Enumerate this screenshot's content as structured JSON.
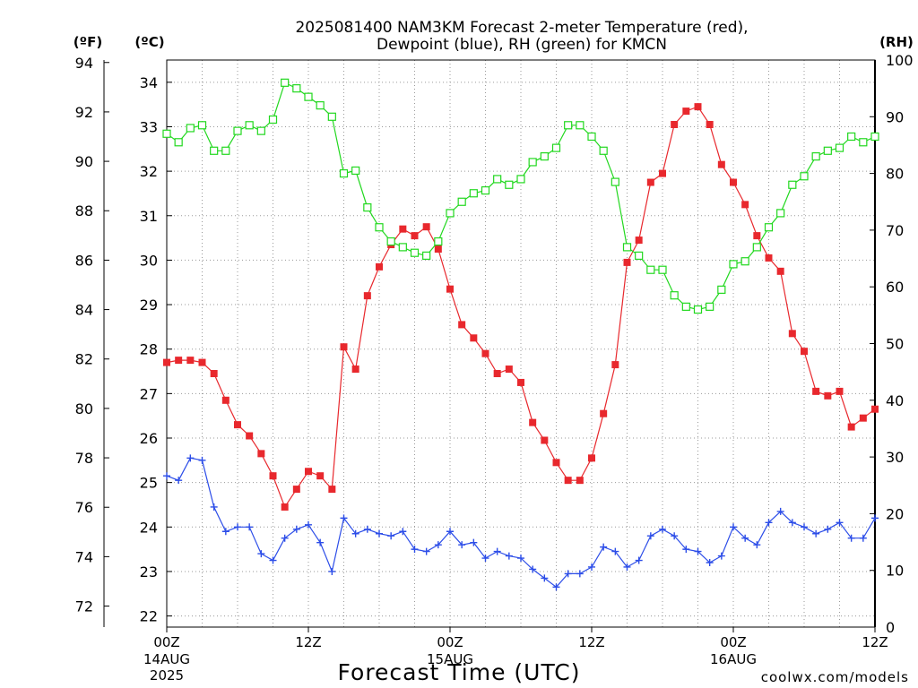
{
  "title_line1": "2025081400 NAM3KM Forecast 2-meter Temperature (red),",
  "title_line2": "Dewpoint (blue), RH (green) for KMCN",
  "unit_f": "(ºF)",
  "unit_c": "(ºC)",
  "unit_rh": "(RH)",
  "xlabel": "Forecast Time (UTC)",
  "credit": "coolwx.com/models",
  "colors": {
    "temperature": "#e8282d",
    "dewpoint": "#2c4de8",
    "rh": "#22d81f",
    "credit": "#d83a4e",
    "axis": "#000000"
  },
  "chart_data": {
    "type": "line",
    "x_unit": "forecast hour",
    "xlim": [
      0,
      60
    ],
    "x_ticks": [
      {
        "hour": 0,
        "label": "00Z",
        "line2": "14AUG",
        "line3": "2025"
      },
      {
        "hour": 12,
        "label": "12Z",
        "line2": "",
        "line3": ""
      },
      {
        "hour": 24,
        "label": "00Z",
        "line2": "15AUG",
        "line3": ""
      },
      {
        "hour": 36,
        "label": "12Z",
        "line2": "",
        "line3": ""
      },
      {
        "hour": 48,
        "label": "00Z",
        "line2": "16AUG",
        "line3": ""
      },
      {
        "hour": 60,
        "label": "12Z",
        "line2": "",
        "line3": ""
      }
    ],
    "ylim_c": [
      21.75,
      34.5
    ],
    "y_ticks_c": [
      "22",
      "23",
      "24",
      "25",
      "26",
      "27",
      "28",
      "29",
      "30",
      "31",
      "32",
      "33",
      "34"
    ],
    "y_ticks_f": [
      "72",
      "74",
      "76",
      "78",
      "80",
      "82",
      "84",
      "86",
      "88",
      "90",
      "92",
      "94"
    ],
    "ylim_rh": [
      0,
      100
    ],
    "y_ticks_rh": [
      "0",
      "10",
      "20",
      "30",
      "40",
      "50",
      "60",
      "70",
      "80",
      "90",
      "100"
    ],
    "grid": true,
    "series": [
      {
        "name": "Temperature",
        "axis": "C",
        "marker": "filled-square",
        "values": [
          27.7,
          27.75,
          27.75,
          27.7,
          27.45,
          26.85,
          26.3,
          26.05,
          25.65,
          25.15,
          24.45,
          24.85,
          25.25,
          25.15,
          24.85,
          28.05,
          27.55,
          29.2,
          29.85,
          30.35,
          30.7,
          30.55,
          30.75,
          30.25,
          29.35,
          28.55,
          28.25,
          27.9,
          27.45,
          27.55,
          27.25,
          26.35,
          25.95,
          25.45,
          25.05,
          25.05,
          25.55,
          26.55,
          27.65,
          29.95,
          30.45,
          31.75,
          31.95,
          33.05,
          33.35,
          33.45,
          33.05,
          32.15,
          31.75,
          31.25,
          30.55,
          30.05,
          29.75,
          28.35,
          27.95,
          27.05,
          26.95,
          27.05,
          26.25,
          26.45,
          26.65
        ]
      },
      {
        "name": "Dewpoint",
        "axis": "C",
        "marker": "plus",
        "values": [
          25.15,
          25.05,
          25.55,
          25.5,
          24.45,
          23.9,
          24.0,
          24.0,
          23.4,
          23.25,
          23.75,
          23.95,
          24.05,
          23.65,
          23.0,
          24.2,
          23.85,
          23.95,
          23.85,
          23.8,
          23.9,
          23.5,
          23.45,
          23.6,
          23.9,
          23.6,
          23.65,
          23.3,
          23.45,
          23.35,
          23.3,
          23.05,
          22.85,
          22.65,
          22.95,
          22.95,
          23.1,
          23.55,
          23.45,
          23.1,
          23.25,
          23.8,
          23.95,
          23.8,
          23.5,
          23.45,
          23.2,
          23.35,
          24.0,
          23.75,
          23.6,
          24.1,
          24.35,
          24.1,
          24.0,
          23.85,
          23.95,
          24.1,
          23.75,
          23.75,
          24.2
        ]
      },
      {
        "name": "RH",
        "axis": "RH",
        "marker": "open-square",
        "values": [
          87,
          85.5,
          88,
          88.5,
          84,
          84,
          87.5,
          88.5,
          87.5,
          89.5,
          96,
          95,
          93.5,
          92,
          90,
          80,
          80.5,
          74,
          70.5,
          68,
          67,
          66,
          65.5,
          68,
          73,
          75,
          76.5,
          77,
          79,
          78,
          79,
          82,
          83,
          84.5,
          88.5,
          88.5,
          86.5,
          84,
          78.5,
          67,
          65.5,
          63,
          63,
          58.5,
          56.5,
          56,
          56.5,
          59.5,
          64,
          64.5,
          67,
          70.5,
          73,
          78,
          79.5,
          83,
          84,
          84.5,
          86.5,
          85.5,
          86.5
        ]
      }
    ]
  }
}
